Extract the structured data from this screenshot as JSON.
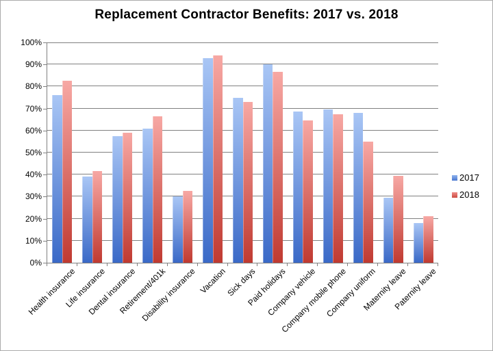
{
  "chart_data": {
    "type": "bar",
    "title": "Replacement Contractor Benefits: 2017 vs. 2018",
    "xlabel": "",
    "ylabel": "",
    "categories": [
      "Health insurance",
      "Life insurance",
      "Dental insurance",
      "Retirement/401k",
      "Disability insurance",
      "Vacation",
      "Sick days",
      "Paid holidays",
      "Company vehicle",
      "Company mobile phone",
      "Company uniform",
      "Maternity leave",
      "Paternity leave"
    ],
    "series": [
      {
        "name": "2017",
        "values": [
          76,
          39,
          57.5,
          61,
          30,
          93,
          75,
          90,
          68.5,
          69.5,
          68,
          29.5,
          18
        ],
        "gradient_top": "#A9C6F5",
        "gradient_bottom": "#3A69C7",
        "legend_color_top": "#8FB3EE",
        "legend_color_bottom": "#4A77CF"
      },
      {
        "name": "2018",
        "values": [
          82.5,
          41.5,
          59,
          66.5,
          32.5,
          94,
          73,
          86.5,
          64.5,
          67.5,
          55,
          39.5,
          21
        ],
        "gradient_top": "#F7A8A4",
        "gradient_bottom": "#C03A31",
        "legend_color_top": "#EE8D88",
        "legend_color_bottom": "#CC4A41"
      }
    ],
    "ylim": [
      0,
      100
    ],
    "y_ticks": [
      {
        "value": 0,
        "label": "0%"
      },
      {
        "value": 10,
        "label": "10%"
      },
      {
        "value": 20,
        "label": "20%"
      },
      {
        "value": 30,
        "label": "30%"
      },
      {
        "value": 40,
        "label": "40%"
      },
      {
        "value": 50,
        "label": "50%"
      },
      {
        "value": 60,
        "label": "60%"
      },
      {
        "value": 70,
        "label": "70%"
      },
      {
        "value": 80,
        "label": "80%"
      },
      {
        "value": 90,
        "label": "90%"
      },
      {
        "value": 100,
        "label": "100%"
      }
    ],
    "grid": true,
    "legend_position": "right",
    "x_label_rotation": -45
  },
  "colors": {
    "background": "#FFFFFF",
    "chart_border": "#ABABAB",
    "gridline": "#808080",
    "axis": "#808080",
    "text": "#000000"
  }
}
